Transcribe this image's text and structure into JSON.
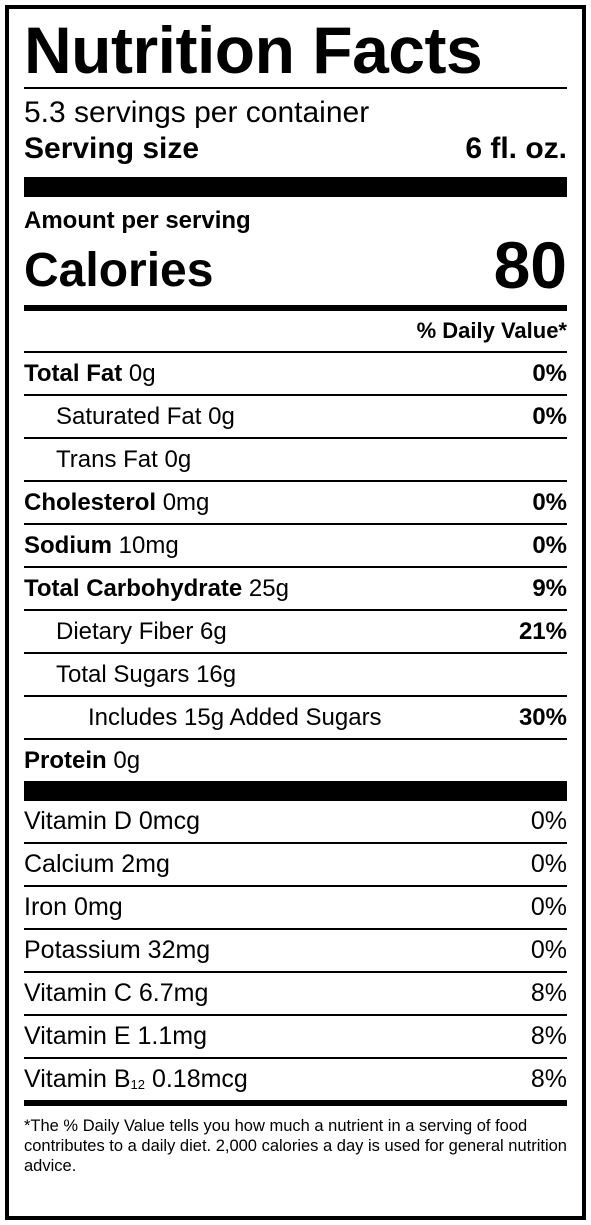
{
  "title": "Nutrition Facts",
  "servings_per_container": "5.3 servings per container",
  "serving_size": {
    "label": "Serving size",
    "value": "6 fl. oz."
  },
  "amount_per_serving": "Amount per serving",
  "calories": {
    "label": "Calories",
    "value": "80"
  },
  "daily_value_header": "% Daily Value*",
  "nutrients": [
    {
      "name": "Total Fat",
      "amount": "0g",
      "dv": "0%"
    },
    {
      "name": "Saturated Fat",
      "amount": "0g",
      "dv": "0%"
    },
    {
      "name": "Trans Fat",
      "amount": "0g",
      "dv": ""
    },
    {
      "name": "Cholesterol",
      "amount": "0mg",
      "dv": "0%"
    },
    {
      "name": "Sodium",
      "amount": "10mg",
      "dv": "0%"
    },
    {
      "name": "Total Carbohydrate",
      "amount": "25g",
      "dv": "9%"
    },
    {
      "name": "Dietary Fiber",
      "amount": "6g",
      "dv": "21%"
    },
    {
      "name": "Total Sugars",
      "amount": "16g",
      "dv": ""
    },
    {
      "name": "Includes 15g Added Sugars",
      "amount": "",
      "dv": "30%"
    },
    {
      "name": "Protein",
      "amount": "0g",
      "dv": ""
    }
  ],
  "vitamins": [
    {
      "name": "Vitamin D",
      "amount": "0mcg",
      "dv": "0%"
    },
    {
      "name": "Calcium",
      "amount": "2mg",
      "dv": "0%"
    },
    {
      "name": "Iron",
      "amount": "0mg",
      "dv": "0%"
    },
    {
      "name": "Potassium",
      "amount": "32mg",
      "dv": "0%"
    },
    {
      "name": "Vitamin C",
      "amount": "6.7mg",
      "dv": "8%"
    },
    {
      "name": "Vitamin E",
      "amount": "1.1mg",
      "dv": "8%"
    },
    {
      "name": "Vitamin B",
      "subscript": "12",
      "amount": "0.18mcg",
      "dv": "8%"
    }
  ],
  "footnote": "*The % Daily Value tells you how much a nutrient in a serving of food contributes to a daily diet. 2,000 calories a day is used for general nutrition advice."
}
